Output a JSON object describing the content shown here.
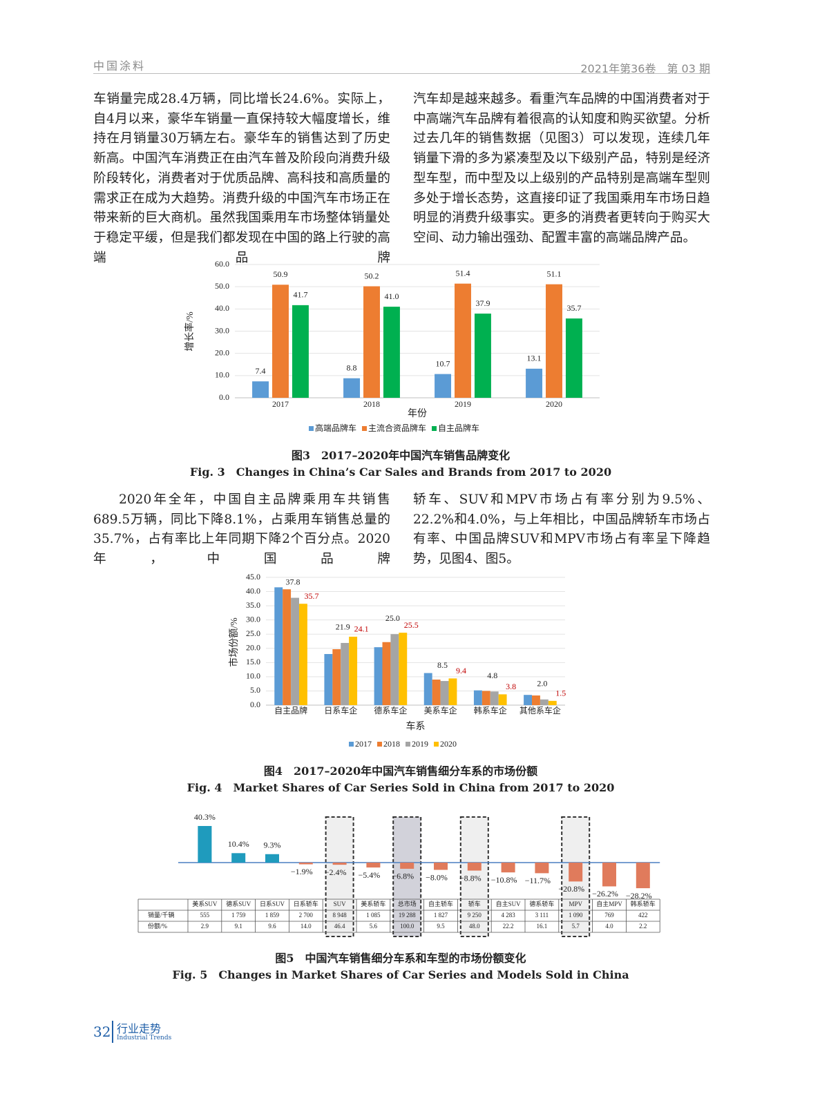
{
  "header": {
    "journal": "中国涂料",
    "issue": "2021年第36卷　第 03 期"
  },
  "body": {
    "block1": [
      "车销量完成28.4万辆，同比增长24.6%。实际上，自4月以来，豪华车销量一直保持较大幅度增长，维持在月销量30万辆左右。豪华车的销售达到了历史新高。中国汽车消费正在由汽车普及阶段向消费升级阶段转化，消费者对于优质品牌、高科技和高质量的需求正在成为大趋势。消费升级的中国汽车市场正在带来新的巨大商机。虽然我国乘用车市场整体销量处于稳定平缓，但是我们都发现在中国的路上行驶的高端品牌",
      "汽车却是越来越多。看重汽车品牌的中国消费者对于中高端汽车品牌有着很高的认知度和购买欲望。分析过去几年的销售数据（见图3）可以发现，连续几年销量下滑的多为紧凑型及以下级别产品，特别是经济型车型，而中型及以上级别的产品特别是高端车型则多处于增长态势，这直接印证了我国乘用车市场日趋明显的消费升级事实。更多的消费者更转向于购买大空间、动力输出强劲、配置丰富的高端品牌产品。"
    ],
    "block2": [
      "2020年全年，中国自主品牌乘用车共销售689.5万辆，同比下降8.1%，占乘用车销售总量的35.7%，占有率比上年同期下降2个百分点。2020年，中国品牌",
      "轿车、SUV和MPV市场占有率分别为9.5%、22.2%和4.0%，与上年相比，中国品牌轿车市场占有率、中国品牌SUV和MPV市场占有率呈下降趋势，见图4、图5。"
    ]
  },
  "chart_data": [
    {
      "type": "bar",
      "caption": "图3　2017–2020年中国汽车销售品牌变化",
      "caption_en": "Fig. 3　Changes in China’s Car Sales and Brands from 2017 to 2020",
      "y_label": "增长率/%",
      "x_label": "年份",
      "categories": [
        "2017",
        "2018",
        "2019",
        "2020"
      ],
      "series": [
        {
          "name": "高端品牌车",
          "color": "#5b9bd5",
          "values": [
            7.4,
            8.8,
            10.7,
            13.1
          ],
          "value_labels": [
            "7.4",
            "8.8",
            "10.7",
            "13.1"
          ]
        },
        {
          "name": "主流合资品牌车",
          "color": "#ed7d31",
          "values": [
            50.9,
            50.2,
            51.4,
            51.1
          ],
          "value_labels": [
            "50.9",
            "50.2",
            "51.4",
            "51.1"
          ]
        },
        {
          "name": "自主品牌车",
          "color": "#00b050",
          "values": [
            41.7,
            41.0,
            37.9,
            35.7
          ],
          "value_labels": [
            "41.7",
            "41.0",
            "37.9",
            "35.7"
          ]
        }
      ],
      "ylim": [
        0,
        60
      ],
      "yticks": [
        {
          "value": 0,
          "label": "0.0"
        },
        {
          "value": 10,
          "label": "10.0"
        },
        {
          "value": 20,
          "label": "20.0"
        },
        {
          "value": 30,
          "label": "30.0"
        },
        {
          "value": 40,
          "label": "40.0"
        },
        {
          "value": 50,
          "label": "50.0"
        },
        {
          "value": 60,
          "label": "60.0"
        }
      ],
      "grid": true,
      "legend": "bottom"
    },
    {
      "type": "bar",
      "caption": "图4　2017–2020年中国汽车销售细分车系的市场份额",
      "caption_en": "Fig. 4　Market Shares of Car Series Sold in China from 2017 to 2020",
      "y_label": "市场份额/%",
      "x_label": "车系",
      "categories": [
        "自主品牌",
        "日系车企",
        "德系车企",
        "美系车企",
        "韩系车企",
        "其他系车企"
      ],
      "series": [
        {
          "name": "2017",
          "color": "#5b9bd5",
          "values": [
            41.5,
            18.0,
            20.4,
            11.3,
            5.2,
            3.6
          ]
        },
        {
          "name": "2018",
          "color": "#ed7d31",
          "values": [
            40.8,
            19.7,
            22.2,
            9.0,
            5.0,
            3.4
          ]
        },
        {
          "name": "2019",
          "color": "#a5a5a5",
          "values": [
            37.8,
            21.9,
            25.0,
            8.5,
            4.8,
            2.0
          ],
          "value_labels": [
            "37.8",
            "21.9",
            "25.0",
            "8.5",
            "4.8",
            "2.0"
          ]
        },
        {
          "name": "2020",
          "color": "#ffc000",
          "values": [
            35.7,
            24.1,
            25.5,
            9.4,
            3.8,
            1.5
          ],
          "value_labels": [
            "35.7",
            "24.1",
            "25.5",
            "9.4",
            "3.8",
            "1.5"
          ],
          "label_color": "#c00000"
        }
      ],
      "ylim": [
        0,
        45
      ],
      "yticks": [
        {
          "value": 0,
          "label": "0.0"
        },
        {
          "value": 5,
          "label": "5.0"
        },
        {
          "value": 10,
          "label": "10.0"
        },
        {
          "value": 15,
          "label": "15.0"
        },
        {
          "value": 20,
          "label": "20.0"
        },
        {
          "value": 25,
          "label": "25.0"
        },
        {
          "value": 30,
          "label": "30.0"
        },
        {
          "value": 35,
          "label": "35.0"
        },
        {
          "value": 40,
          "label": "40.0"
        },
        {
          "value": 45,
          "label": "45.0"
        }
      ],
      "grid": true,
      "legend": "bottom"
    },
    {
      "type": "bar",
      "caption": "图5　中国汽车销售细分车系和车型的市场份额变化",
      "caption_en": "Fig. 5　Changes in Market Shares of Car Series and Models Sold in China",
      "categories": [
        "美系SUV",
        "德系SUV",
        "日系SUV",
        "日系轿车",
        "SUV",
        "美系轿车",
        "总市场",
        "自主轿车",
        "轿车",
        "自主SUV",
        "德系轿车",
        "MPV",
        "自主MPV",
        "韩系轿车"
      ],
      "values": [
        40.3,
        10.4,
        9.3,
        -1.9,
        -2.4,
        -5.4,
        -6.8,
        -8.0,
        -8.8,
        -10.8,
        -11.7,
        -20.8,
        -26.2,
        -28.2
      ],
      "value_labels": [
        "40.3%",
        "10.4%",
        "9.3%",
        "−1.9%",
        "−2.4%",
        "−5.4%",
        "−6.8%",
        "−8.0%",
        "−8.8%",
        "−10.8%",
        "−11.7%",
        "−20.8%",
        "−26.2%",
        "−28.2%"
      ],
      "colors": {
        "positive": "#1f9bbd",
        "negative": "#e07b5c"
      },
      "highlight": [
        4,
        6,
        8,
        11
      ],
      "shaded": 6,
      "table": {
        "rows": [
          {
            "label": "销量/千辆",
            "cells": [
              "555",
              "1 759",
              "1 859",
              "2 700",
              "8 948",
              "1 085",
              "19 288",
              "1 827",
              "9 250",
              "4 283",
              "3 111",
              "1 090",
              "769",
              "422"
            ]
          },
          {
            "label": "份额/%",
            "cells": [
              "2.9",
              "9.1",
              "9.6",
              "14.0",
              "46.4",
              "5.6",
              "100.0",
              "9.5",
              "48.0",
              "22.2",
              "16.1",
              "5.7",
              "4.0",
              "2.2"
            ]
          }
        ]
      }
    }
  ],
  "footer": {
    "page": "32",
    "section": "行业走势",
    "section_en": "Industrial Trends"
  }
}
